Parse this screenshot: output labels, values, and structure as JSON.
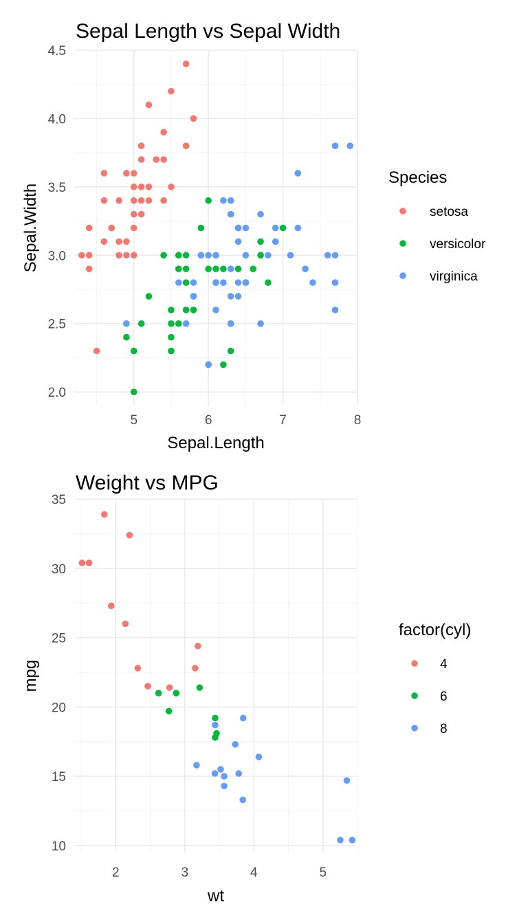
{
  "chart_data": [
    {
      "type": "scatter",
      "title": "Sepal Length vs Sepal Width",
      "xlabel": "Sepal.Length",
      "ylabel": "Sepal.Width",
      "xlim": [
        4.2,
        8.0
      ],
      "ylim": [
        1.9,
        4.5
      ],
      "xticks": [
        5,
        6,
        7,
        8
      ],
      "yticks": [
        2.0,
        2.5,
        3.0,
        3.5,
        4.0,
        4.5
      ],
      "xtick_labels": [
        "5",
        "6",
        "7",
        "8"
      ],
      "ytick_labels": [
        "2.0",
        "2.5",
        "3.0",
        "3.5",
        "4.0",
        "4.5"
      ],
      "grid": true,
      "legend": {
        "title": "Species",
        "position": "right"
      },
      "series": [
        {
          "name": "setosa",
          "color": "#F8766D",
          "points": [
            [
              5.1,
              3.5
            ],
            [
              4.9,
              3.0
            ],
            [
              4.7,
              3.2
            ],
            [
              4.6,
              3.1
            ],
            [
              5.0,
              3.6
            ],
            [
              5.4,
              3.9
            ],
            [
              4.6,
              3.4
            ],
            [
              5.0,
              3.4
            ],
            [
              4.4,
              2.9
            ],
            [
              4.9,
              3.1
            ],
            [
              5.4,
              3.7
            ],
            [
              4.8,
              3.4
            ],
            [
              4.8,
              3.0
            ],
            [
              4.3,
              3.0
            ],
            [
              5.8,
              4.0
            ],
            [
              5.7,
              4.4
            ],
            [
              5.1,
              3.8
            ],
            [
              5.7,
              3.8
            ],
            [
              5.2,
              4.1
            ],
            [
              5.5,
              4.2
            ],
            [
              4.9,
              3.6
            ],
            [
              4.4,
              3.0
            ],
            [
              4.5,
              2.3
            ],
            [
              4.4,
              3.2
            ],
            [
              5.0,
              3.5
            ],
            [
              5.1,
              3.4
            ],
            [
              5.2,
              3.5
            ],
            [
              5.2,
              3.4
            ],
            [
              4.7,
              3.2
            ],
            [
              5.0,
              3.0
            ],
            [
              5.4,
              3.4
            ],
            [
              5.3,
              3.7
            ],
            [
              5.0,
              3.3
            ],
            [
              5.1,
              3.7
            ],
            [
              5.0,
              3.2
            ],
            [
              4.6,
              3.6
            ],
            [
              5.5,
              3.5
            ],
            [
              4.8,
              3.1
            ],
            [
              5.1,
              3.3
            ]
          ]
        },
        {
          "name": "versicolor",
          "color": "#00BA38",
          "points": [
            [
              7.0,
              3.2
            ],
            [
              6.4,
              3.2
            ],
            [
              6.9,
              3.1
            ],
            [
              5.5,
              2.3
            ],
            [
              6.5,
              2.8
            ],
            [
              5.7,
              2.8
            ],
            [
              6.3,
              3.3
            ],
            [
              4.9,
              2.4
            ],
            [
              6.6,
              2.9
            ],
            [
              5.2,
              2.7
            ],
            [
              5.0,
              2.0
            ],
            [
              5.9,
              3.0
            ],
            [
              6.0,
              2.2
            ],
            [
              6.1,
              2.9
            ],
            [
              5.6,
              2.9
            ],
            [
              6.7,
              3.1
            ],
            [
              5.6,
              3.0
            ],
            [
              5.8,
              2.7
            ],
            [
              6.2,
              2.2
            ],
            [
              5.6,
              2.5
            ],
            [
              5.9,
              3.2
            ],
            [
              6.1,
              2.8
            ],
            [
              6.3,
              2.5
            ],
            [
              6.4,
              2.9
            ],
            [
              6.8,
              2.8
            ],
            [
              6.7,
              3.0
            ],
            [
              6.0,
              2.9
            ],
            [
              5.7,
              2.6
            ],
            [
              5.5,
              2.4
            ],
            [
              5.5,
              2.6
            ],
            [
              5.4,
              3.0
            ],
            [
              6.0,
              3.4
            ],
            [
              6.3,
              2.3
            ],
            [
              5.6,
              3.0
            ],
            [
              5.5,
              2.5
            ],
            [
              6.1,
              3.0
            ],
            [
              5.8,
              2.6
            ],
            [
              5.0,
              2.3
            ],
            [
              5.7,
              2.9
            ],
            [
              6.2,
              2.9
            ],
            [
              5.1,
              2.5
            ],
            [
              5.7,
              3.0
            ]
          ]
        },
        {
          "name": "virginica",
          "color": "#619CFF",
          "points": [
            [
              6.3,
              3.3
            ],
            [
              5.8,
              2.7
            ],
            [
              7.1,
              3.0
            ],
            [
              6.3,
              2.9
            ],
            [
              6.5,
              3.0
            ],
            [
              7.6,
              3.0
            ],
            [
              4.9,
              2.5
            ],
            [
              7.3,
              2.9
            ],
            [
              6.7,
              2.5
            ],
            [
              7.2,
              3.6
            ],
            [
              6.5,
              3.2
            ],
            [
              6.4,
              2.7
            ],
            [
              6.8,
              3.0
            ],
            [
              5.7,
              2.5
            ],
            [
              6.4,
              3.2
            ],
            [
              7.7,
              3.8
            ],
            [
              7.7,
              2.6
            ],
            [
              6.0,
              2.2
            ],
            [
              6.9,
              3.2
            ],
            [
              5.6,
              2.8
            ],
            [
              7.7,
              2.8
            ],
            [
              6.3,
              2.7
            ],
            [
              6.7,
              3.3
            ],
            [
              7.2,
              3.2
            ],
            [
              6.2,
              2.8
            ],
            [
              6.1,
              3.0
            ],
            [
              7.4,
              2.8
            ],
            [
              7.9,
              3.8
            ],
            [
              6.4,
              2.8
            ],
            [
              6.1,
              2.6
            ],
            [
              7.7,
              3.0
            ],
            [
              6.3,
              3.4
            ],
            [
              6.4,
              3.1
            ],
            [
              6.0,
              3.0
            ],
            [
              6.9,
              3.1
            ],
            [
              5.8,
              2.8
            ],
            [
              6.2,
              3.4
            ],
            [
              5.9,
              3.0
            ],
            [
              6.1,
              2.8
            ],
            [
              6.3,
              2.5
            ],
            [
              6.5,
              2.8
            ]
          ]
        }
      ]
    },
    {
      "type": "scatter",
      "title": "Weight vs MPG",
      "xlabel": "wt",
      "ylabel": "mpg",
      "xlim": [
        1.4,
        5.5
      ],
      "ylim": [
        9.5,
        35
      ],
      "xticks": [
        2,
        3,
        4,
        5
      ],
      "yticks": [
        10,
        15,
        20,
        25,
        30,
        35
      ],
      "xtick_labels": [
        "2",
        "3",
        "4",
        "5"
      ],
      "ytick_labels": [
        "10",
        "15",
        "20",
        "25",
        "30",
        "35"
      ],
      "grid": true,
      "legend": {
        "title": "factor(cyl)",
        "position": "right"
      },
      "series": [
        {
          "name": "4",
          "color": "#F8766D",
          "points": [
            [
              2.32,
              22.8
            ],
            [
              3.19,
              24.4
            ],
            [
              3.15,
              22.8
            ],
            [
              2.2,
              32.4
            ],
            [
              1.615,
              30.4
            ],
            [
              1.835,
              33.9
            ],
            [
              2.465,
              21.5
            ],
            [
              1.935,
              27.3
            ],
            [
              2.14,
              26.0
            ],
            [
              1.513,
              30.4
            ],
            [
              2.78,
              21.4
            ]
          ]
        },
        {
          "name": "6",
          "color": "#00BA38",
          "points": [
            [
              2.62,
              21.0
            ],
            [
              2.875,
              21.0
            ],
            [
              3.215,
              21.4
            ],
            [
              3.46,
              18.1
            ],
            [
              3.44,
              19.2
            ],
            [
              3.44,
              17.8
            ],
            [
              2.77,
              19.7
            ]
          ]
        },
        {
          "name": "8",
          "color": "#619CFF",
          "points": [
            [
              3.44,
              18.7
            ],
            [
              3.57,
              14.3
            ],
            [
              4.07,
              16.4
            ],
            [
              3.73,
              17.3
            ],
            [
              3.78,
              15.2
            ],
            [
              5.25,
              10.4
            ],
            [
              5.424,
              10.4
            ],
            [
              5.345,
              14.7
            ],
            [
              3.52,
              15.5
            ],
            [
              3.435,
              15.2
            ],
            [
              3.84,
              13.3
            ],
            [
              3.845,
              19.2
            ],
            [
              3.17,
              15.8
            ],
            [
              3.57,
              15.0
            ]
          ]
        }
      ]
    }
  ]
}
